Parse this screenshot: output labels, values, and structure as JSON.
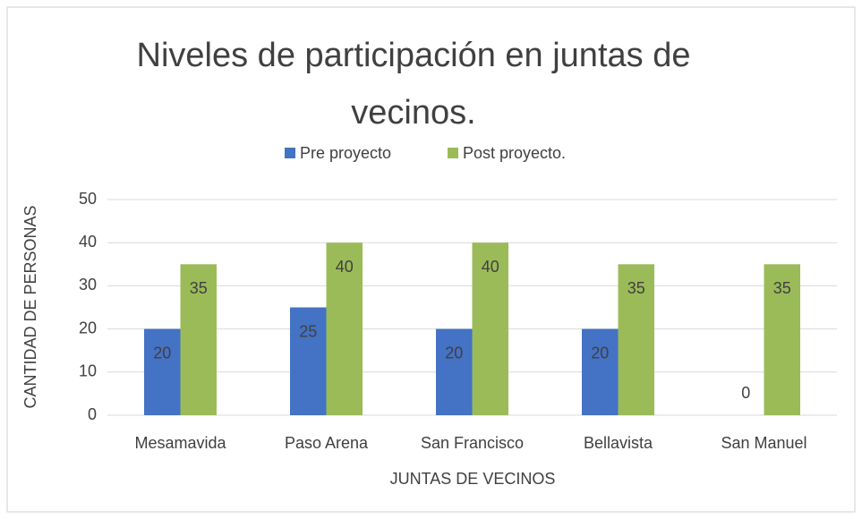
{
  "chart_data": {
    "type": "bar",
    "title": "Niveles de participación en juntas de vecinos.",
    "x_label": "JUNTAS DE VECINOS",
    "y_label": "CANTIDAD DE PERSONAS",
    "categories": [
      "Mesamavida",
      "Paso Arena",
      "San Francisco",
      "Bellavista",
      "San Manuel"
    ],
    "series": [
      {
        "name": "Pre proyecto",
        "color": "#4472c4",
        "values": [
          20,
          25,
          20,
          20,
          0
        ]
      },
      {
        "name": "Post proyecto.",
        "color": "#9bbb59",
        "values": [
          35,
          40,
          40,
          35,
          35
        ]
      }
    ],
    "ylim": [
      0,
      50
    ],
    "yticks": [
      0,
      10,
      20,
      30,
      40,
      50
    ],
    "grid": true,
    "legend": "top"
  }
}
